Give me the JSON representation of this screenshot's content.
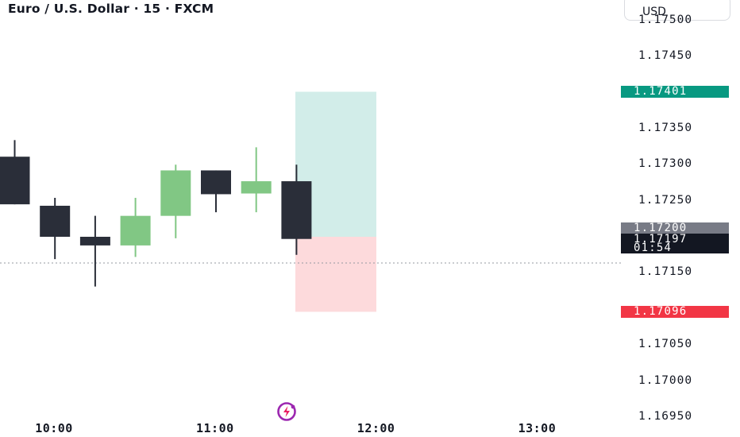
{
  "header": {
    "symbol_title": "Euro / U.S. Dollar · 15 · FXCM"
  },
  "currency_selector": {
    "label": "USD"
  },
  "price_axis": {
    "labels": [
      {
        "text": "1.17500",
        "value": 1.175
      },
      {
        "text": "1.17450",
        "value": 1.1745
      },
      {
        "text": "1.17350",
        "value": 1.1735
      },
      {
        "text": "1.17300",
        "value": 1.173
      },
      {
        "text": "1.17250",
        "value": 1.1725
      },
      {
        "text": "1.17150",
        "value": 1.1715
      },
      {
        "text": "1.17050",
        "value": 1.1705
      },
      {
        "text": "1.17000",
        "value": 1.17
      },
      {
        "text": "1.16950",
        "value": 1.1695
      }
    ]
  },
  "price_tags": {
    "take_profit": {
      "text": "1.17401",
      "value": 1.17401,
      "color": "#089981"
    },
    "entry": {
      "text": "1.17200",
      "value": 1.172,
      "color": "#787b86"
    },
    "last_price": {
      "text": "1.17197",
      "value": 1.17197,
      "color": "#131722"
    },
    "countdown": {
      "text": "01:54"
    },
    "stop_loss": {
      "text": "1.17096",
      "value": 1.17096,
      "color": "#f23645"
    }
  },
  "time_axis": {
    "labels": [
      {
        "text": "10:00",
        "bar_index": 1
      },
      {
        "text": "11:00",
        "bar_index": 5
      },
      {
        "text": "12:00",
        "bar_index": 9
      },
      {
        "text": "13:00",
        "bar_index": 13
      }
    ]
  },
  "colors": {
    "bearish_candle": "#2a2e39",
    "bullish_candle": "#81c784",
    "profit_zone": "#d2ede9",
    "loss_zone": "#fddadc",
    "crosshair_line": "#9598a1"
  },
  "chart_data": {
    "type": "candlestick",
    "series": [
      {
        "time": "09:45",
        "open": 1.17311,
        "high": 1.17334,
        "close": 1.17245,
        "low": 1.17245
      },
      {
        "time": "10:00",
        "open": 1.17243,
        "high": 1.17254,
        "close": 1.172,
        "low": 1.17169
      },
      {
        "time": "10:15",
        "open": 1.172,
        "high": 1.17229,
        "close": 1.17188,
        "low": 1.17131
      },
      {
        "time": "10:30",
        "open": 1.17188,
        "high": 1.17254,
        "close": 1.17229,
        "low": 1.17172
      },
      {
        "time": "10:45",
        "open": 1.17229,
        "high": 1.173,
        "close": 1.17292,
        "low": 1.17198
      },
      {
        "time": "11:00",
        "open": 1.17292,
        "high": 1.17292,
        "close": 1.17259,
        "low": 1.17234
      },
      {
        "time": "11:15",
        "open": 1.1726,
        "high": 1.17324,
        "close": 1.17277,
        "low": 1.17234
      },
      {
        "time": "11:30",
        "open": 1.17277,
        "high": 1.173,
        "close": 1.17197,
        "low": 1.17175
      }
    ],
    "position": {
      "entry": 1.172,
      "take_profit": 1.17401,
      "stop_loss": 1.17096
    },
    "last_price": 1.17197,
    "ylim": [
      1.1695,
      1.175
    ]
  }
}
